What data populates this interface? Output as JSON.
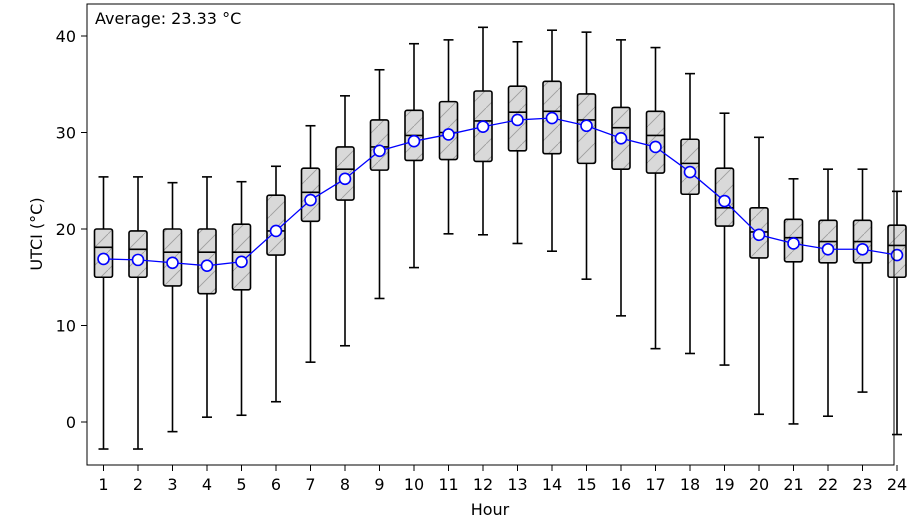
{
  "chart_data": {
    "type": "box",
    "annotation": "Average: 23.33 °C",
    "xlabel": "Hour",
    "ylabel": "UTCI (°C)",
    "ylim": [
      -5.3,
      43.2
    ],
    "yticks": [
      0,
      10,
      20,
      30,
      40
    ],
    "categories": [
      "1",
      "2",
      "3",
      "4",
      "5",
      "6",
      "7",
      "8",
      "9",
      "10",
      "11",
      "12",
      "13",
      "14",
      "15",
      "16",
      "17",
      "18",
      "19",
      "20",
      "21",
      "22",
      "23",
      "24"
    ],
    "boxes": [
      {
        "min": -2.8,
        "q1": 15.0,
        "median": 18.1,
        "q3": 20.0,
        "max": 25.4
      },
      {
        "min": -2.8,
        "q1": 15.0,
        "median": 17.9,
        "q3": 19.8,
        "max": 25.4
      },
      {
        "min": -1.0,
        "q1": 14.1,
        "median": 17.6,
        "q3": 20.0,
        "max": 24.8
      },
      {
        "min": 0.5,
        "q1": 13.3,
        "median": 17.6,
        "q3": 20.0,
        "max": 25.4
      },
      {
        "min": 0.7,
        "q1": 13.7,
        "median": 17.6,
        "q3": 20.5,
        "max": 24.9
      },
      {
        "min": 2.1,
        "q1": 17.3,
        "median": 19.8,
        "q3": 23.5,
        "max": 26.5
      },
      {
        "min": 6.2,
        "q1": 20.8,
        "median": 23.8,
        "q3": 26.3,
        "max": 30.7
      },
      {
        "min": 7.9,
        "q1": 23.0,
        "median": 26.2,
        "q3": 28.5,
        "max": 33.8
      },
      {
        "min": 12.8,
        "q1": 26.1,
        "median": 28.5,
        "q3": 31.3,
        "max": 36.5
      },
      {
        "min": 16.0,
        "q1": 27.1,
        "median": 29.7,
        "q3": 32.3,
        "max": 39.2
      },
      {
        "min": 19.5,
        "q1": 27.2,
        "median": 30.0,
        "q3": 33.2,
        "max": 39.6
      },
      {
        "min": 19.4,
        "q1": 27.0,
        "median": 31.2,
        "q3": 34.3,
        "max": 40.9
      },
      {
        "min": 18.5,
        "q1": 28.1,
        "median": 32.1,
        "q3": 34.8,
        "max": 39.4
      },
      {
        "min": 17.7,
        "q1": 27.8,
        "median": 32.2,
        "q3": 35.3,
        "max": 40.6
      },
      {
        "min": 14.8,
        "q1": 26.8,
        "median": 31.3,
        "q3": 34.0,
        "max": 40.4
      },
      {
        "min": 11.0,
        "q1": 26.2,
        "median": 30.5,
        "q3": 32.6,
        "max": 39.6
      },
      {
        "min": 7.6,
        "q1": 25.8,
        "median": 29.7,
        "q3": 32.2,
        "max": 38.8
      },
      {
        "min": 7.1,
        "q1": 23.6,
        "median": 26.8,
        "q3": 29.3,
        "max": 36.1
      },
      {
        "min": 5.9,
        "q1": 20.3,
        "median": 22.2,
        "q3": 26.3,
        "max": 32.0
      },
      {
        "min": 0.8,
        "q1": 17.0,
        "median": 19.7,
        "q3": 22.2,
        "max": 29.5
      },
      {
        "min": -0.2,
        "q1": 16.6,
        "median": 19.1,
        "q3": 21.0,
        "max": 25.2
      },
      {
        "min": 0.6,
        "q1": 16.5,
        "median": 18.7,
        "q3": 20.9,
        "max": 26.2
      },
      {
        "min": 3.1,
        "q1": 16.5,
        "median": 18.7,
        "q3": 20.9,
        "max": 26.2
      },
      {
        "min": -1.3,
        "q1": 15.0,
        "median": 18.3,
        "q3": 20.4,
        "max": 23.9
      }
    ],
    "series": [
      {
        "values": [
          16.9,
          16.8,
          16.5,
          16.2,
          16.6,
          19.8,
          23.0,
          25.2,
          28.1,
          29.1,
          29.8,
          30.6,
          31.3,
          31.5,
          30.7,
          29.4,
          28.5,
          25.9,
          22.9,
          19.4,
          18.5,
          17.9,
          17.9,
          17.3
        ]
      }
    ],
    "colors": {
      "box_fill": "#d9d9d9",
      "hatch": "#9e9e9e",
      "mean_line": "#0000ff",
      "mean_marker_fill": "#ffffff"
    },
    "grid": false
  }
}
